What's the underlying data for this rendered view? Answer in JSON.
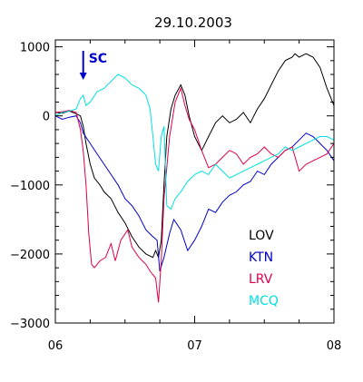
{
  "chart_data": {
    "type": "line",
    "title": "29.10.2003",
    "xlabel": "",
    "ylabel": "",
    "xlim": [
      6,
      8
    ],
    "ylim": [
      -3000,
      1100
    ],
    "x_ticks": [
      {
        "value": 6,
        "label": "06"
      },
      {
        "value": 7,
        "label": "07"
      },
      {
        "value": 8,
        "label": "08"
      }
    ],
    "y_ticks": [
      {
        "value": 1000,
        "label": "1000"
      },
      {
        "value": 0,
        "label": "0"
      },
      {
        "value": -1000,
        "label": "−1000"
      },
      {
        "value": -2000,
        "label": "−2000"
      },
      {
        "value": -3000,
        "label": "−3000"
      }
    ],
    "grid": false,
    "legend_position": "bottom-right",
    "annotation": {
      "label": "SC",
      "x": 6.2,
      "color": "#0000cc"
    },
    "series": [
      {
        "name": "LOV",
        "color": "#000000",
        "points": [
          [
            6.0,
            50
          ],
          [
            6.05,
            40
          ],
          [
            6.1,
            70
          ],
          [
            6.15,
            30
          ],
          [
            6.18,
            0
          ],
          [
            6.2,
            -150
          ],
          [
            6.22,
            -400
          ],
          [
            6.25,
            -700
          ],
          [
            6.28,
            -900
          ],
          [
            6.32,
            -1000
          ],
          [
            6.35,
            -1100
          ],
          [
            6.4,
            -1200
          ],
          [
            6.45,
            -1400
          ],
          [
            6.5,
            -1550
          ],
          [
            6.55,
            -1750
          ],
          [
            6.6,
            -1900
          ],
          [
            6.65,
            -2000
          ],
          [
            6.7,
            -2050
          ],
          [
            6.72,
            -1950
          ],
          [
            6.74,
            -2050
          ],
          [
            6.76,
            -1800
          ],
          [
            6.78,
            -1000
          ],
          [
            6.8,
            -300
          ],
          [
            6.83,
            100
          ],
          [
            6.86,
            300
          ],
          [
            6.9,
            450
          ],
          [
            6.93,
            300
          ],
          [
            6.96,
            0
          ],
          [
            7.0,
            -300
          ],
          [
            7.05,
            -500
          ],
          [
            7.1,
            -300
          ],
          [
            7.15,
            -100
          ],
          [
            7.2,
            0
          ],
          [
            7.25,
            -100
          ],
          [
            7.3,
            -50
          ],
          [
            7.35,
            50
          ],
          [
            7.4,
            -100
          ],
          [
            7.45,
            100
          ],
          [
            7.5,
            250
          ],
          [
            7.55,
            450
          ],
          [
            7.6,
            650
          ],
          [
            7.65,
            800
          ],
          [
            7.7,
            850
          ],
          [
            7.72,
            900
          ],
          [
            7.75,
            850
          ],
          [
            7.8,
            900
          ],
          [
            7.85,
            850
          ],
          [
            7.9,
            700
          ],
          [
            7.95,
            400
          ],
          [
            8.0,
            150
          ]
        ]
      },
      {
        "name": "KTN",
        "color": "#0000cc",
        "points": [
          [
            6.0,
            0
          ],
          [
            6.05,
            -50
          ],
          [
            6.1,
            -20
          ],
          [
            6.15,
            0
          ],
          [
            6.18,
            -100
          ],
          [
            6.2,
            -250
          ],
          [
            6.25,
            -400
          ],
          [
            6.3,
            -550
          ],
          [
            6.35,
            -700
          ],
          [
            6.4,
            -850
          ],
          [
            6.45,
            -1000
          ],
          [
            6.5,
            -1200
          ],
          [
            6.55,
            -1300
          ],
          [
            6.6,
            -1450
          ],
          [
            6.65,
            -1650
          ],
          [
            6.7,
            -1750
          ],
          [
            6.73,
            -1800
          ],
          [
            6.75,
            -2250
          ],
          [
            6.78,
            -2050
          ],
          [
            6.82,
            -1700
          ],
          [
            6.85,
            -1500
          ],
          [
            6.9,
            -1650
          ],
          [
            6.95,
            -1950
          ],
          [
            7.0,
            -1800
          ],
          [
            7.05,
            -1600
          ],
          [
            7.1,
            -1350
          ],
          [
            7.15,
            -1400
          ],
          [
            7.2,
            -1250
          ],
          [
            7.25,
            -1150
          ],
          [
            7.3,
            -1100
          ],
          [
            7.35,
            -1000
          ],
          [
            7.4,
            -950
          ],
          [
            7.45,
            -800
          ],
          [
            7.5,
            -850
          ],
          [
            7.55,
            -700
          ],
          [
            7.6,
            -600
          ],
          [
            7.65,
            -500
          ],
          [
            7.7,
            -450
          ],
          [
            7.75,
            -350
          ],
          [
            7.8,
            -250
          ],
          [
            7.85,
            -300
          ],
          [
            7.9,
            -400
          ],
          [
            7.95,
            -500
          ],
          [
            8.0,
            -650
          ]
        ]
      },
      {
        "name": "LRV",
        "color": "#e0004a",
        "points": [
          [
            6.0,
            50
          ],
          [
            6.05,
            60
          ],
          [
            6.1,
            80
          ],
          [
            6.15,
            50
          ],
          [
            6.18,
            -200
          ],
          [
            6.2,
            -500
          ],
          [
            6.22,
            -1000
          ],
          [
            6.24,
            -1700
          ],
          [
            6.26,
            -2150
          ],
          [
            6.28,
            -2200
          ],
          [
            6.32,
            -2100
          ],
          [
            6.36,
            -2050
          ],
          [
            6.4,
            -1850
          ],
          [
            6.43,
            -2100
          ],
          [
            6.47,
            -1800
          ],
          [
            6.52,
            -1650
          ],
          [
            6.55,
            -1900
          ],
          [
            6.6,
            -2050
          ],
          [
            6.65,
            -2150
          ],
          [
            6.68,
            -2250
          ],
          [
            6.72,
            -2350
          ],
          [
            6.74,
            -2700
          ],
          [
            6.76,
            -2100
          ],
          [
            6.78,
            -1200
          ],
          [
            6.82,
            -300
          ],
          [
            6.86,
            200
          ],
          [
            6.9,
            400
          ],
          [
            6.93,
            150
          ],
          [
            6.96,
            -50
          ],
          [
            7.0,
            -200
          ],
          [
            7.05,
            -500
          ],
          [
            7.1,
            -750
          ],
          [
            7.15,
            -700
          ],
          [
            7.2,
            -600
          ],
          [
            7.25,
            -500
          ],
          [
            7.3,
            -550
          ],
          [
            7.35,
            -700
          ],
          [
            7.4,
            -600
          ],
          [
            7.45,
            -550
          ],
          [
            7.5,
            -450
          ],
          [
            7.55,
            -550
          ],
          [
            7.6,
            -600
          ],
          [
            7.65,
            -500
          ],
          [
            7.7,
            -450
          ],
          [
            7.75,
            -800
          ],
          [
            7.8,
            -700
          ],
          [
            7.85,
            -650
          ],
          [
            7.9,
            -600
          ],
          [
            7.95,
            -550
          ],
          [
            8.0,
            -400
          ]
        ]
      },
      {
        "name": "MCQ",
        "color": "#00e0e0",
        "points": [
          [
            6.0,
            0
          ],
          [
            6.05,
            50
          ],
          [
            6.1,
            70
          ],
          [
            6.15,
            100
          ],
          [
            6.18,
            250
          ],
          [
            6.2,
            300
          ],
          [
            6.22,
            150
          ],
          [
            6.25,
            200
          ],
          [
            6.3,
            350
          ],
          [
            6.35,
            400
          ],
          [
            6.4,
            500
          ],
          [
            6.45,
            600
          ],
          [
            6.5,
            550
          ],
          [
            6.55,
            450
          ],
          [
            6.6,
            400
          ],
          [
            6.65,
            300
          ],
          [
            6.68,
            100
          ],
          [
            6.7,
            -300
          ],
          [
            6.72,
            -700
          ],
          [
            6.74,
            -800
          ],
          [
            6.76,
            -300
          ],
          [
            6.78,
            -150
          ],
          [
            6.8,
            -1300
          ],
          [
            6.83,
            -1350
          ],
          [
            6.86,
            -1200
          ],
          [
            6.9,
            -1100
          ],
          [
            6.95,
            -950
          ],
          [
            7.0,
            -850
          ],
          [
            7.05,
            -800
          ],
          [
            7.1,
            -850
          ],
          [
            7.15,
            -700
          ],
          [
            7.2,
            -800
          ],
          [
            7.25,
            -900
          ],
          [
            7.3,
            -850
          ],
          [
            7.35,
            -800
          ],
          [
            7.4,
            -750
          ],
          [
            7.45,
            -700
          ],
          [
            7.5,
            -650
          ],
          [
            7.55,
            -600
          ],
          [
            7.6,
            -550
          ],
          [
            7.65,
            -450
          ],
          [
            7.7,
            -500
          ],
          [
            7.75,
            -450
          ],
          [
            7.8,
            -400
          ],
          [
            7.85,
            -350
          ],
          [
            7.9,
            -300
          ],
          [
            7.95,
            -300
          ],
          [
            8.0,
            -350
          ]
        ]
      }
    ]
  }
}
